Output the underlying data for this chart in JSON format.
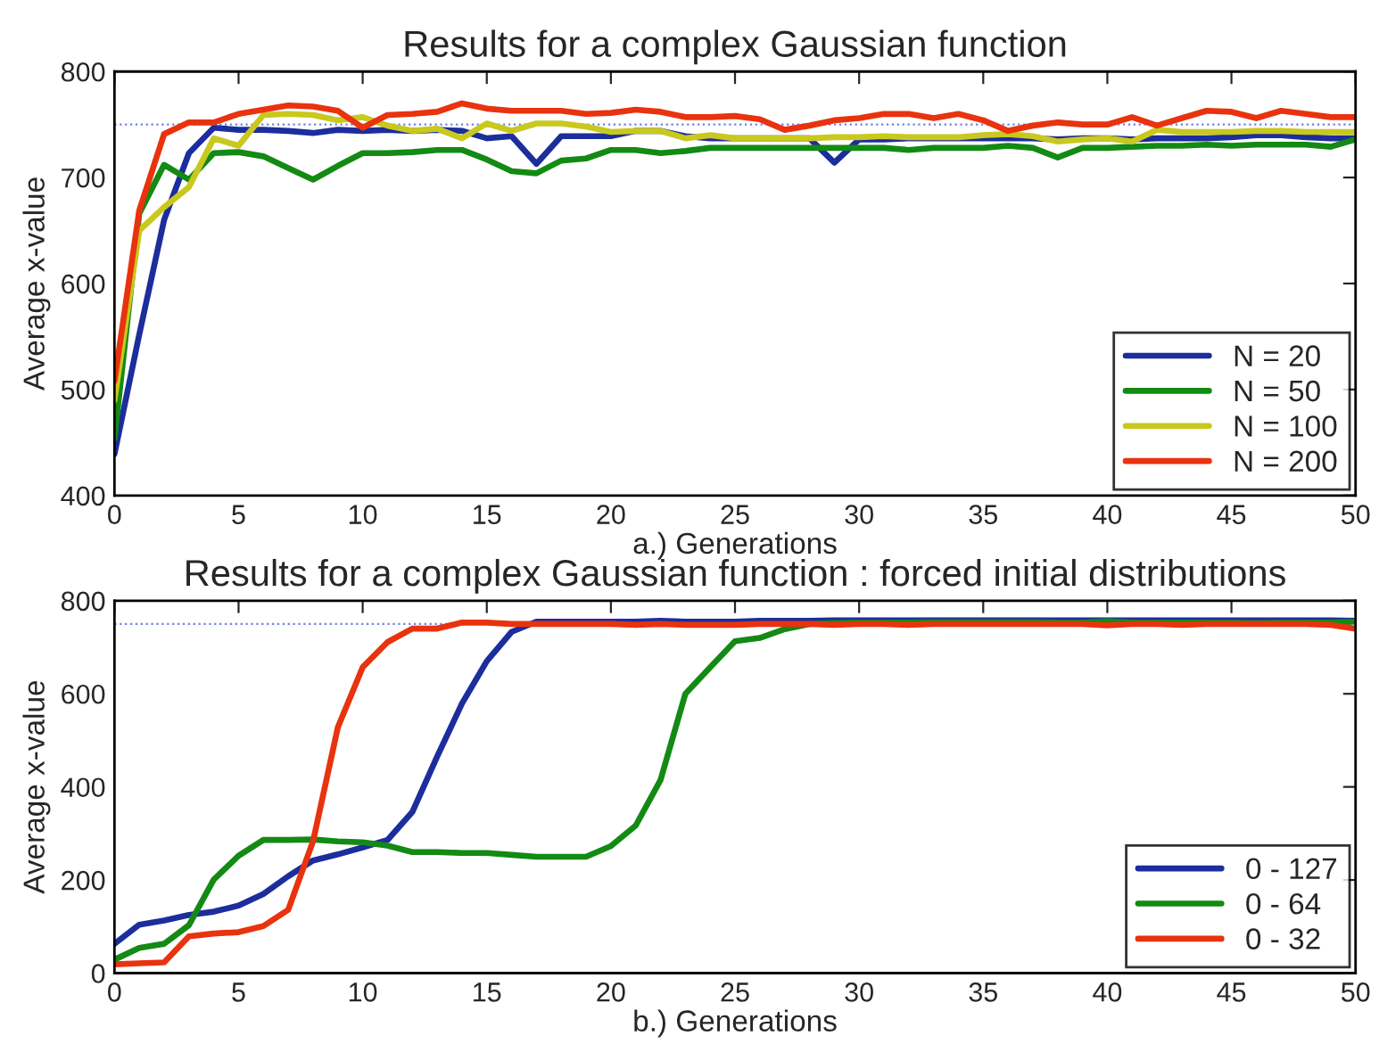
{
  "chart_data": [
    {
      "type": "line",
      "title": "Results for a complex Gaussian function",
      "xlabel": "a.) Generations",
      "ylabel": "Average x-value",
      "x": [
        0,
        1,
        2,
        3,
        4,
        5,
        6,
        7,
        8,
        9,
        10,
        11,
        12,
        13,
        14,
        15,
        16,
        17,
        18,
        19,
        20,
        21,
        22,
        23,
        24,
        25,
        26,
        27,
        28,
        29,
        30,
        31,
        32,
        33,
        34,
        35,
        36,
        37,
        38,
        39,
        40,
        41,
        42,
        43,
        44,
        45,
        46,
        47,
        48,
        49,
        50
      ],
      "xlim": [
        0,
        50
      ],
      "xticks": [
        0,
        5,
        10,
        15,
        20,
        25,
        30,
        35,
        40,
        45,
        50
      ],
      "ylim": [
        400,
        800
      ],
      "yticks": [
        400,
        500,
        600,
        700,
        800
      ],
      "grid": false,
      "legend": "bottom right",
      "line_style": "solid",
      "marker": "none",
      "ref_lines": [
        {
          "axis": "y",
          "value": 750,
          "color": "#6f7ff0",
          "line_style": "dotted"
        }
      ],
      "series": [
        {
          "name": "N = 20",
          "color": "#1c2d9c",
          "values": [
            439,
            552,
            660,
            723,
            747,
            745,
            745,
            744,
            742,
            745,
            744,
            745,
            744,
            745,
            744,
            737,
            739,
            713,
            739,
            739,
            739,
            744,
            744,
            739,
            737,
            737,
            737,
            737,
            737,
            714,
            736,
            736,
            737,
            737,
            737,
            737,
            737,
            737,
            736,
            737,
            737,
            736,
            737,
            737,
            737,
            738,
            740,
            740,
            738,
            737,
            737
          ]
        },
        {
          "name": "N = 50",
          "color": "#138a13",
          "values": [
            454,
            666,
            712,
            698,
            723,
            724,
            720,
            709,
            698,
            711,
            723,
            723,
            724,
            726,
            726,
            717,
            706,
            704,
            716,
            718,
            726,
            726,
            723,
            725,
            728,
            728,
            728,
            728,
            728,
            728,
            728,
            728,
            726,
            728,
            728,
            728,
            730,
            728,
            719,
            728,
            728,
            729,
            730,
            730,
            731,
            730,
            731,
            731,
            731,
            729,
            736
          ]
        },
        {
          "name": "N = 100",
          "color": "#c8c81e",
          "values": [
            490,
            650,
            672,
            691,
            737,
            730,
            759,
            760,
            759,
            754,
            757,
            749,
            744,
            746,
            737,
            751,
            744,
            751,
            751,
            748,
            743,
            744,
            744,
            737,
            740,
            737,
            737,
            737,
            737,
            738,
            738,
            739,
            738,
            738,
            738,
            740,
            741,
            739,
            734,
            736,
            737,
            734,
            745,
            743,
            743,
            743,
            744,
            744,
            743,
            743,
            743
          ]
        },
        {
          "name": "N = 200",
          "color": "#e8330e",
          "values": [
            508,
            669,
            741,
            752,
            752,
            760,
            764,
            768,
            767,
            763,
            747,
            759,
            760,
            762,
            770,
            765,
            763,
            763,
            763,
            760,
            761,
            764,
            762,
            757,
            757,
            758,
            755,
            745,
            749,
            754,
            756,
            760,
            760,
            756,
            760,
            754,
            744,
            749,
            752,
            750,
            750,
            757,
            749,
            756,
            763,
            762,
            756,
            763,
            760,
            757,
            757
          ]
        }
      ]
    },
    {
      "type": "line",
      "title": "Results for a complex Gaussian function : forced initial distributions",
      "xlabel": "b.) Generations",
      "ylabel": "Average x-value",
      "x": [
        0,
        1,
        2,
        3,
        4,
        5,
        6,
        7,
        8,
        9,
        10,
        11,
        12,
        13,
        14,
        15,
        16,
        17,
        18,
        19,
        20,
        21,
        22,
        23,
        24,
        25,
        26,
        27,
        28,
        29,
        30,
        31,
        32,
        33,
        34,
        35,
        36,
        37,
        38,
        39,
        40,
        41,
        42,
        43,
        44,
        45,
        46,
        47,
        48,
        49,
        50
      ],
      "xlim": [
        0,
        50
      ],
      "xticks": [
        0,
        5,
        10,
        15,
        20,
        25,
        30,
        35,
        40,
        45,
        50
      ],
      "ylim": [
        0,
        800
      ],
      "yticks": [
        0,
        200,
        400,
        600,
        800
      ],
      "grid": false,
      "legend": "bottom right",
      "line_style": "solid",
      "marker": "none",
      "ref_lines": [
        {
          "axis": "y",
          "value": 750,
          "color": "#6f7ff0",
          "line_style": "dotted"
        }
      ],
      "series": [
        {
          "name": "0 - 127",
          "color": "#1c2d9c",
          "values": [
            63,
            104,
            113,
            125,
            132,
            145,
            170,
            208,
            242,
            255,
            270,
            286,
            346,
            465,
            579,
            670,
            733,
            755,
            755,
            755,
            755,
            755,
            757,
            755,
            755,
            755,
            757,
            757,
            757,
            758,
            758,
            758,
            758,
            758,
            758,
            758,
            758,
            758,
            758,
            758,
            758,
            758,
            758,
            758,
            758,
            758,
            758,
            758,
            758,
            758,
            757
          ]
        },
        {
          "name": "0 - 64",
          "color": "#138a13",
          "values": [
            29,
            54,
            63,
            103,
            201,
            252,
            286,
            286,
            287,
            283,
            281,
            274,
            260,
            260,
            258,
            258,
            254,
            250,
            250,
            250,
            273,
            317,
            415,
            600,
            657,
            713,
            720,
            739,
            750,
            752,
            753,
            753,
            753,
            754,
            754,
            754,
            754,
            754,
            753,
            753,
            756,
            753,
            753,
            753,
            753,
            753,
            752,
            753,
            753,
            753,
            755
          ]
        },
        {
          "name": "0 - 32",
          "color": "#e8330e",
          "values": [
            19,
            21,
            23,
            79,
            85,
            88,
            101,
            136,
            283,
            528,
            657,
            711,
            740,
            740,
            753,
            753,
            750,
            750,
            750,
            750,
            750,
            748,
            750,
            748,
            748,
            748,
            750,
            750,
            750,
            748,
            750,
            750,
            748,
            750,
            750,
            750,
            750,
            750,
            750,
            750,
            747,
            750,
            750,
            748,
            750,
            750,
            750,
            750,
            750,
            748,
            740
          ]
        }
      ]
    }
  ]
}
